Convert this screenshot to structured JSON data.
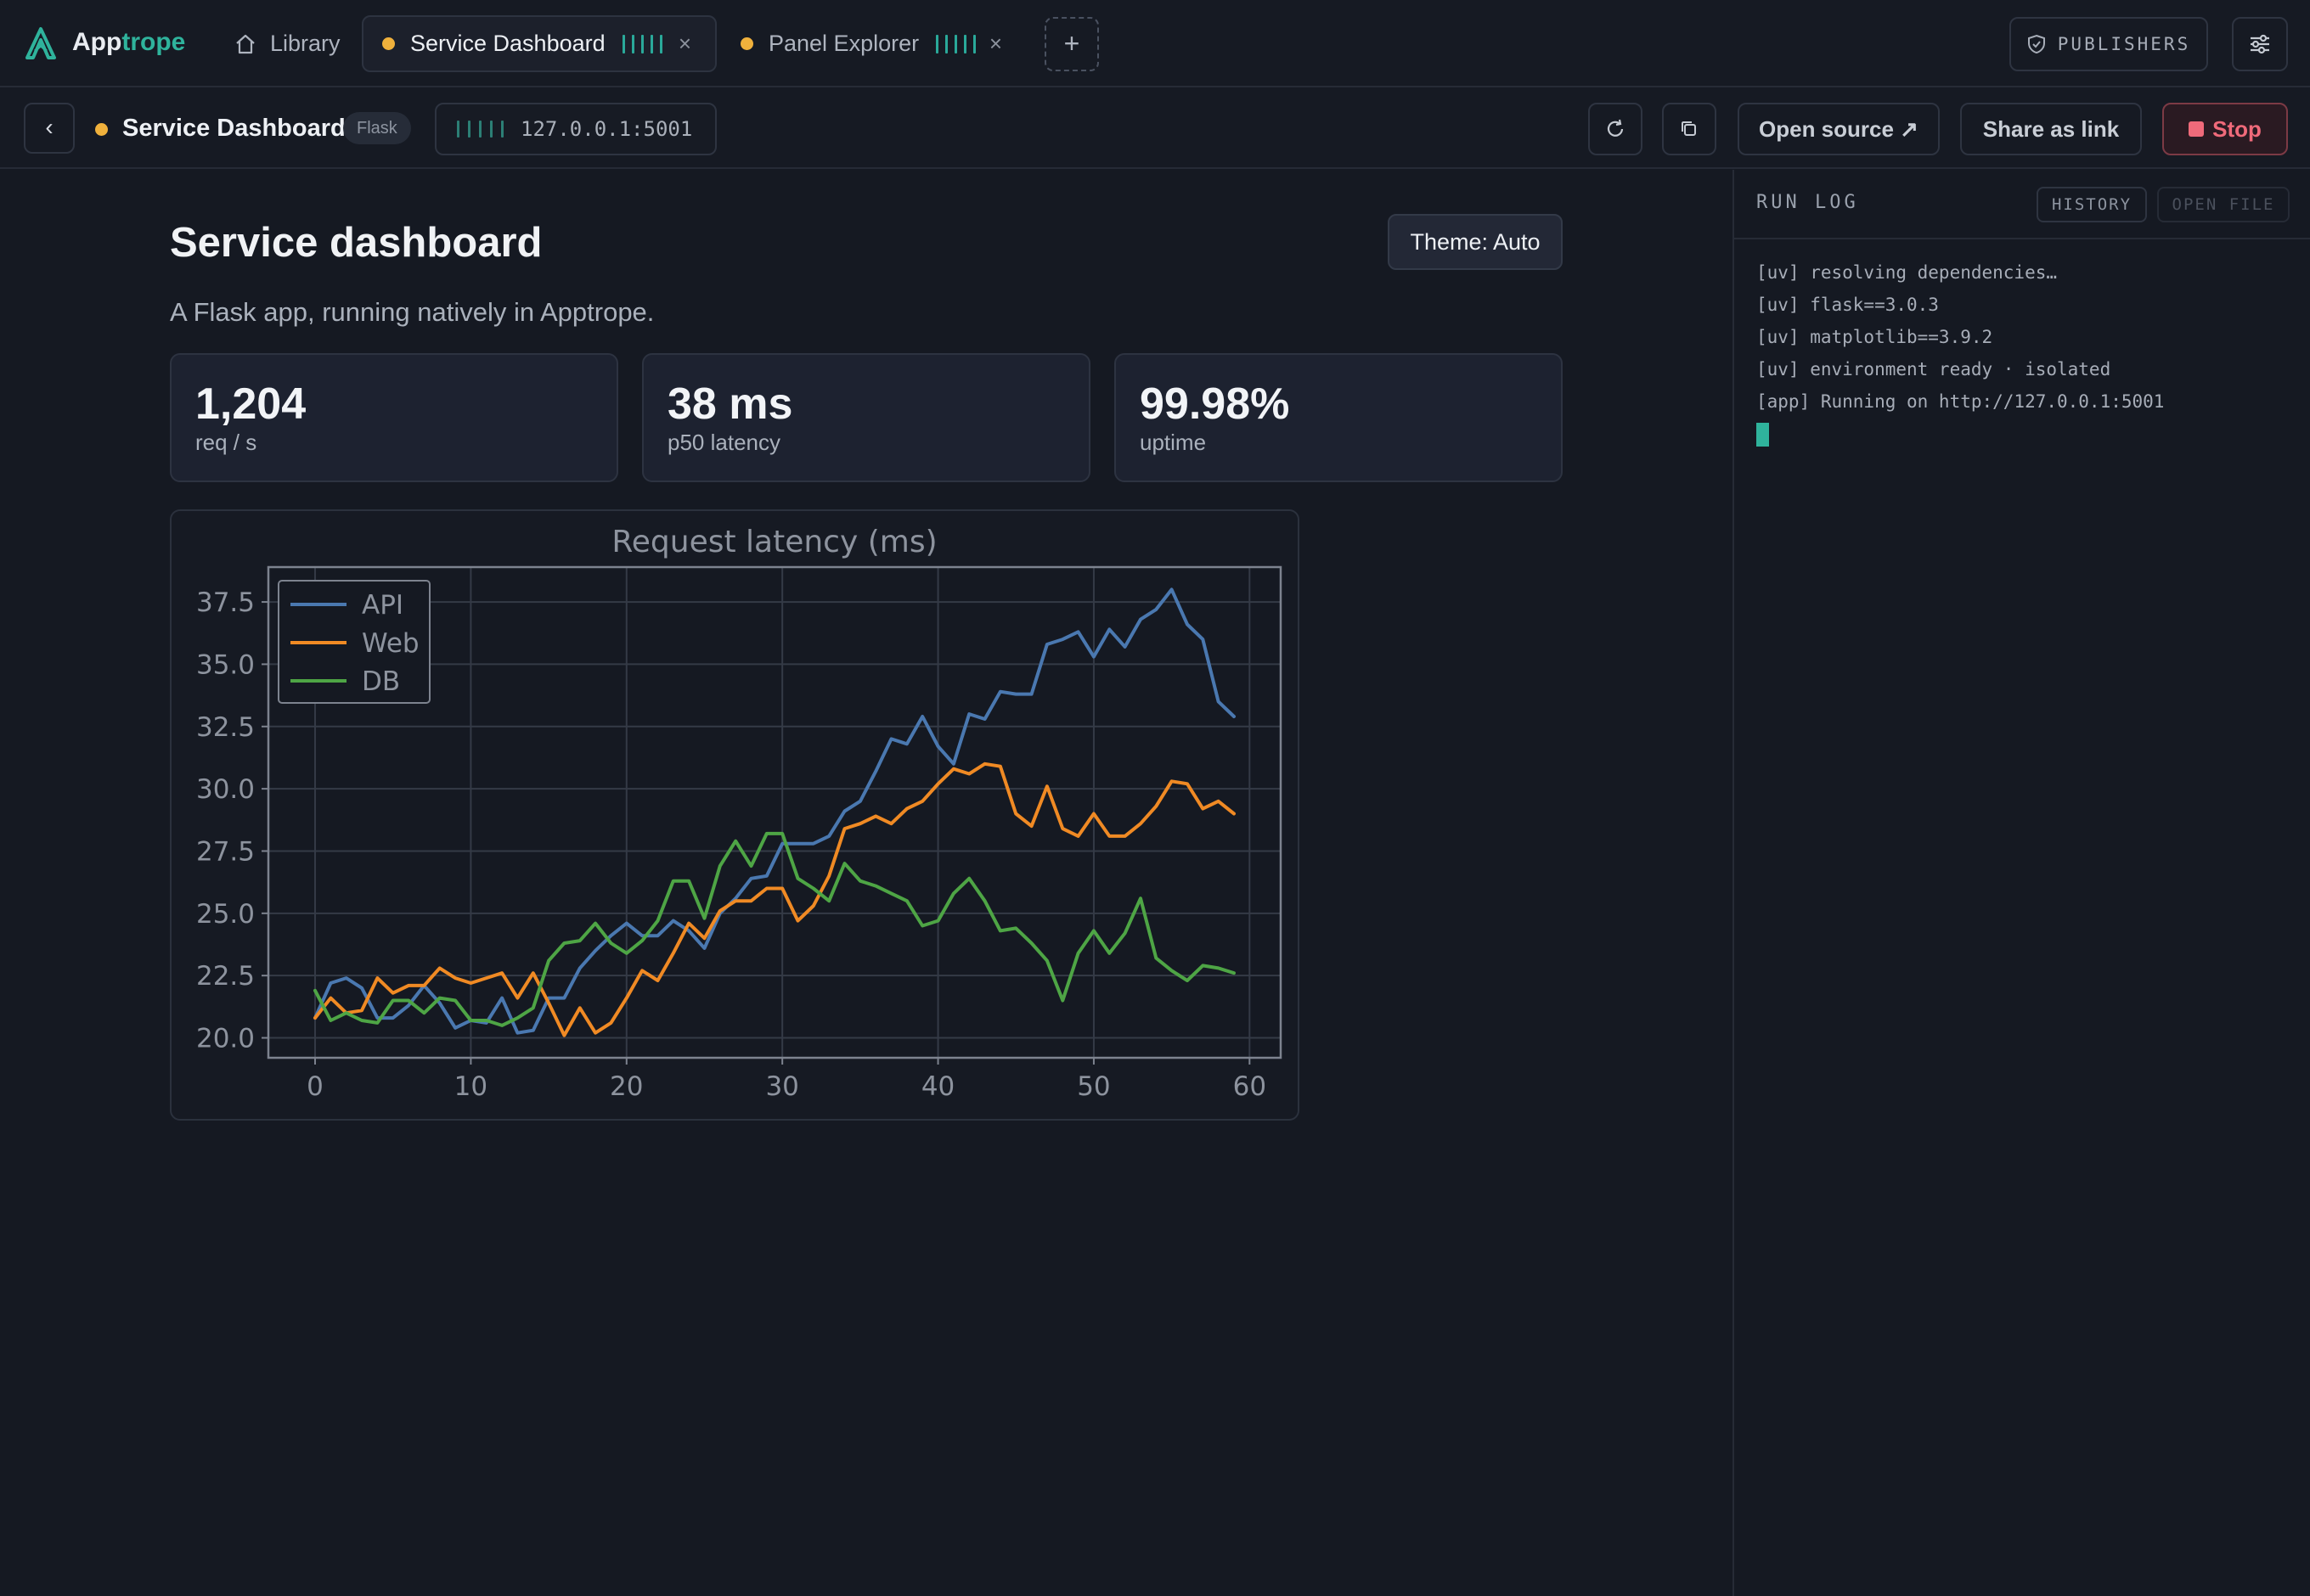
{
  "app": {
    "brand_part1": "App",
    "brand_part2": "trope"
  },
  "tabs": [
    {
      "label": "Library"
    },
    {
      "label": "Service Dashboard",
      "close": "×"
    },
    {
      "label": "Panel Explorer",
      "close": "×"
    }
  ],
  "new_tab": "+",
  "publishers_label": "PUBLISHERS",
  "toolbar": {
    "back": "‹",
    "title": "Service Dashboard",
    "badge": "Flask",
    "address": "127.0.0.1:5001",
    "open_source": "Open source ↗",
    "share": "Share as link",
    "stop": "Stop"
  },
  "page": {
    "title": "Service dashboard",
    "theme_button": "Theme: Auto",
    "subtitle": "A Flask app, running natively in Apptrope."
  },
  "stats": [
    {
      "value": "1,204",
      "label": "req / s"
    },
    {
      "value": "38 ms",
      "label": "p50 latency"
    },
    {
      "value": "99.98%",
      "label": "uptime"
    }
  ],
  "log": {
    "title": "RUN LOG",
    "history": "HISTORY",
    "open_file": "OPEN FILE",
    "lines": [
      "[uv] resolving dependencies…",
      "[uv] flask==3.0.3",
      "[uv] matplotlib==3.9.2",
      "[uv] environment ready · isolated",
      "[app] Running on http://127.0.0.1:5001"
    ]
  },
  "colors": {
    "accent": "#2fb39c",
    "status_dot": "#f0b13c",
    "stop": "#ef6a7a",
    "api": "#4a78b0",
    "web": "#f08a24",
    "db": "#4ea545"
  },
  "chart_data": {
    "type": "line",
    "title": "Request latency (ms)",
    "xlabel": "",
    "ylabel": "",
    "xlim": [
      -3,
      62
    ],
    "ylim": [
      19.2,
      38.9
    ],
    "xticks": [
      0,
      10,
      20,
      30,
      40,
      50,
      60
    ],
    "yticks": [
      20.0,
      22.5,
      25.0,
      27.5,
      30.0,
      32.5,
      35.0,
      37.5
    ],
    "grid": true,
    "legend_position": "top-left",
    "x": [
      0,
      1,
      2,
      3,
      4,
      5,
      6,
      7,
      8,
      9,
      10,
      11,
      12,
      13,
      14,
      15,
      16,
      17,
      18,
      19,
      20,
      21,
      22,
      23,
      24,
      25,
      26,
      27,
      28,
      29,
      30,
      31,
      32,
      33,
      34,
      35,
      36,
      37,
      38,
      39,
      40,
      41,
      42,
      43,
      44,
      45,
      46,
      47,
      48,
      49,
      50,
      51,
      52,
      53,
      54,
      55,
      56,
      57,
      58,
      59
    ],
    "series": [
      {
        "name": "API",
        "values": [
          20.8,
          22.2,
          22.4,
          22.0,
          20.8,
          20.8,
          21.3,
          22.1,
          21.4,
          20.4,
          20.7,
          20.6,
          21.6,
          20.2,
          20.3,
          21.6,
          21.6,
          22.8,
          23.5,
          24.1,
          24.6,
          24.1,
          24.1,
          24.7,
          24.3,
          23.6,
          25.0,
          25.6,
          26.4,
          26.5,
          27.8,
          27.8,
          27.8,
          28.1,
          29.1,
          29.5,
          30.7,
          32.0,
          31.8,
          32.9,
          31.7,
          31.0,
          33.0,
          32.8,
          33.9,
          33.8,
          33.8,
          35.8,
          36.0,
          36.3,
          35.3,
          36.4,
          35.7,
          36.8,
          37.2,
          38.0,
          36.6,
          36.0,
          33.5,
          32.9
        ]
      },
      {
        "name": "Web",
        "values": [
          20.8,
          21.6,
          21.0,
          21.1,
          22.4,
          21.8,
          22.1,
          22.1,
          22.8,
          22.4,
          22.2,
          22.4,
          22.6,
          21.6,
          22.6,
          21.4,
          20.1,
          21.2,
          20.2,
          20.6,
          21.6,
          22.7,
          22.3,
          23.4,
          24.6,
          24.0,
          25.1,
          25.5,
          25.5,
          26.0,
          26.0,
          24.7,
          25.3,
          26.5,
          28.4,
          28.6,
          28.9,
          28.6,
          29.2,
          29.5,
          30.2,
          30.8,
          30.6,
          31.0,
          30.9,
          29.0,
          28.5,
          30.1,
          28.4,
          28.1,
          29.0,
          28.1,
          28.1,
          28.6,
          29.3,
          30.3,
          30.2,
          29.2,
          29.5,
          29.0
        ]
      },
      {
        "name": "DB",
        "values": [
          21.9,
          20.7,
          21.0,
          20.7,
          20.6,
          21.5,
          21.5,
          21.0,
          21.6,
          21.5,
          20.7,
          20.7,
          20.5,
          20.8,
          21.2,
          23.1,
          23.8,
          23.9,
          24.6,
          23.8,
          23.4,
          23.9,
          24.7,
          26.3,
          26.3,
          24.8,
          26.9,
          27.9,
          26.9,
          28.2,
          28.2,
          26.4,
          26.0,
          25.5,
          27.0,
          26.3,
          26.1,
          25.8,
          25.5,
          24.5,
          24.7,
          25.8,
          26.4,
          25.5,
          24.3,
          24.4,
          23.8,
          23.1,
          21.5,
          23.4,
          24.3,
          23.4,
          24.2,
          25.6,
          23.2,
          22.7,
          22.3,
          22.9,
          22.8,
          22.6
        ]
      }
    ]
  }
}
